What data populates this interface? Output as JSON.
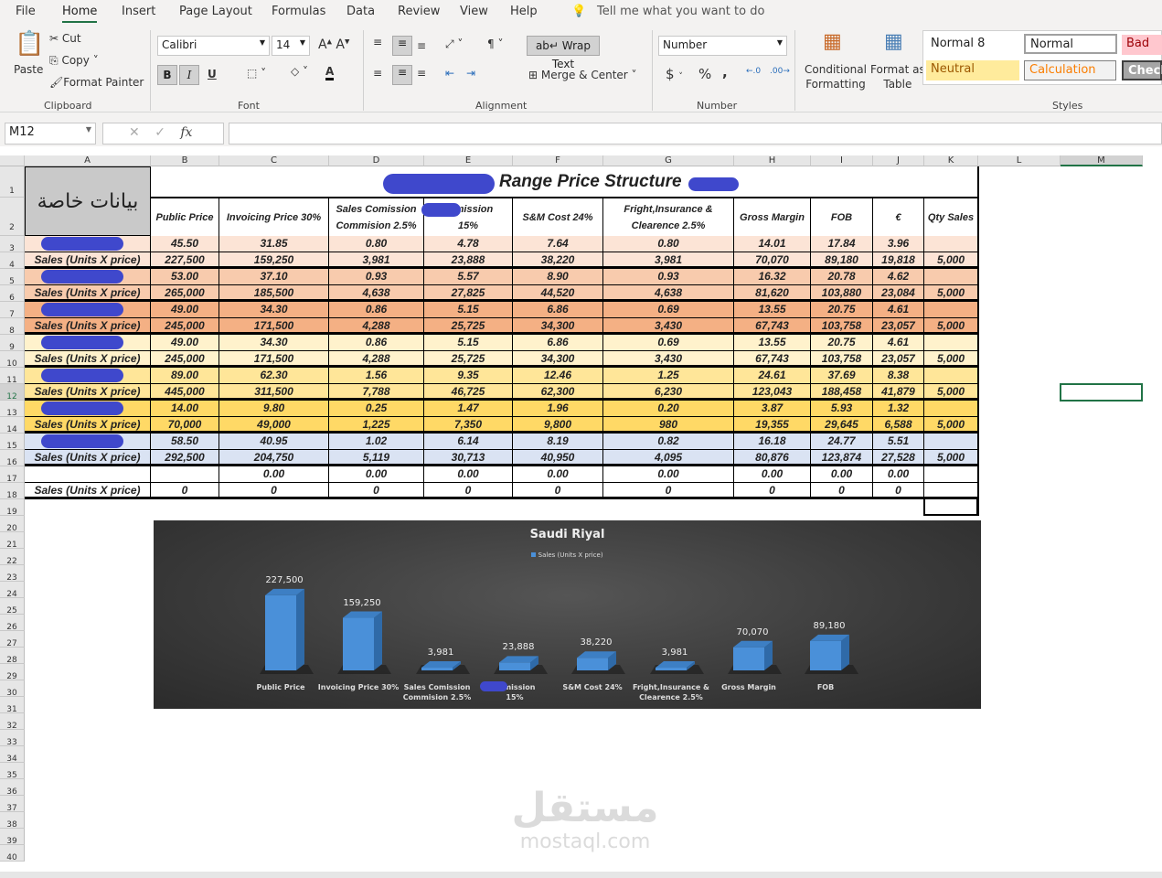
{
  "menu": {
    "tabs": [
      "File",
      "Home",
      "Insert",
      "Page Layout",
      "Formulas",
      "Data",
      "Review",
      "View",
      "Help"
    ],
    "active": "Home",
    "tell_me": "Tell me what you want to do"
  },
  "ribbon": {
    "clipboard": {
      "paste": "Paste",
      "cut": "Cut",
      "copy": "Copy",
      "format_painter": "Format Painter",
      "label": "Clipboard"
    },
    "font": {
      "name": "Calibri",
      "size": "14",
      "bold": "B",
      "italic": "I",
      "underline": "U",
      "label": "Font"
    },
    "alignment": {
      "wrap_text": "Wrap Text",
      "merge_center": "Merge & Center",
      "label": "Alignment"
    },
    "number": {
      "format": "Number",
      "currency": "$",
      "percent": "%",
      "comma": ",",
      "label": "Number"
    },
    "styles": {
      "conditional": "Conditional\nFormatting",
      "format_table": "Format as\nTable",
      "normal8": "Normal 8",
      "normal": "Normal",
      "bad": "Bad",
      "neutral": "Neutral",
      "calculation": "Calculation",
      "check": "Check",
      "label": "Styles"
    }
  },
  "formula_bar": {
    "name_box": "M12",
    "fx": "fx",
    "value": ""
  },
  "columns": [
    "A",
    "B",
    "C",
    "D",
    "E",
    "F",
    "G",
    "H",
    "I",
    "J",
    "K",
    "L",
    "M"
  ],
  "sheet": {
    "a1": "بيانات خاصة",
    "title": "Range Price Structure",
    "headers": [
      "Public Price",
      "Invoicing Price 30%",
      "Sales Comission\nCommision 2.5%",
      "comission\n15%",
      "S&M Cost 24%",
      "Fright,Insurance &\nClearence 2.5%",
      "Gross Margin",
      "FOB",
      "€",
      "Qty Sales"
    ],
    "band_colors": [
      "#fce4d6",
      "#f8cbad",
      "#f4b084",
      "#fff2cc",
      "#ffe699",
      "#ffd966",
      "#dae3f3",
      "#ffffff"
    ],
    "rows": [
      {
        "label": "",
        "values": [
          "45.50",
          "31.85",
          "0.80",
          "4.78",
          "7.64",
          "0.80",
          "14.01",
          "17.84",
          "3.96",
          ""
        ]
      },
      {
        "label": "Sales (Units X price)",
        "values": [
          "227,500",
          "159,250",
          "3,981",
          "23,888",
          "38,220",
          "3,981",
          "70,070",
          "89,180",
          "19,818",
          "5,000"
        ]
      },
      {
        "label": "",
        "values": [
          "53.00",
          "37.10",
          "0.93",
          "5.57",
          "8.90",
          "0.93",
          "16.32",
          "20.78",
          "4.62",
          ""
        ]
      },
      {
        "label": "Sales (Units X price)",
        "values": [
          "265,000",
          "185,500",
          "4,638",
          "27,825",
          "44,520",
          "4,638",
          "81,620",
          "103,880",
          "23,084",
          "5,000"
        ]
      },
      {
        "label": "",
        "values": [
          "49.00",
          "34.30",
          "0.86",
          "5.15",
          "6.86",
          "0.69",
          "13.55",
          "20.75",
          "4.61",
          ""
        ]
      },
      {
        "label": "Sales (Units X price)",
        "values": [
          "245,000",
          "171,500",
          "4,288",
          "25,725",
          "34,300",
          "3,430",
          "67,743",
          "103,758",
          "23,057",
          "5,000"
        ]
      },
      {
        "label": "",
        "values": [
          "49.00",
          "34.30",
          "0.86",
          "5.15",
          "6.86",
          "0.69",
          "13.55",
          "20.75",
          "4.61",
          ""
        ]
      },
      {
        "label": "Sales (Units X price)",
        "values": [
          "245,000",
          "171,500",
          "4,288",
          "25,725",
          "34,300",
          "3,430",
          "67,743",
          "103,758",
          "23,057",
          "5,000"
        ]
      },
      {
        "label": "",
        "values": [
          "89.00",
          "62.30",
          "1.56",
          "9.35",
          "12.46",
          "1.25",
          "24.61",
          "37.69",
          "8.38",
          ""
        ]
      },
      {
        "label": "Sales (Units X price)",
        "values": [
          "445,000",
          "311,500",
          "7,788",
          "46,725",
          "62,300",
          "6,230",
          "123,043",
          "188,458",
          "41,879",
          "5,000"
        ]
      },
      {
        "label": "",
        "values": [
          "14.00",
          "9.80",
          "0.25",
          "1.47",
          "1.96",
          "0.20",
          "3.87",
          "5.93",
          "1.32",
          ""
        ]
      },
      {
        "label": "Sales (Units X price)",
        "values": [
          "70,000",
          "49,000",
          "1,225",
          "7,350",
          "9,800",
          "980",
          "19,355",
          "29,645",
          "6,588",
          "5,000"
        ]
      },
      {
        "label": "",
        "values": [
          "58.50",
          "40.95",
          "1.02",
          "6.14",
          "8.19",
          "0.82",
          "16.18",
          "24.77",
          "5.51",
          ""
        ]
      },
      {
        "label": "Sales (Units X price)",
        "values": [
          "292,500",
          "204,750",
          "5,119",
          "30,713",
          "40,950",
          "4,095",
          "80,876",
          "123,874",
          "27,528",
          "5,000"
        ]
      },
      {
        "label": "",
        "values": [
          "",
          "0.00",
          "0.00",
          "0.00",
          "0.00",
          "0.00",
          "0.00",
          "0.00",
          "0.00",
          ""
        ]
      },
      {
        "label": "Sales (Units X price)",
        "values": [
          "0",
          "0",
          "0",
          "0",
          "0",
          "0",
          "0",
          "0",
          "0",
          ""
        ]
      }
    ]
  },
  "chart_data": {
    "type": "bar",
    "title": "Saudi Riyal",
    "legend": "top",
    "categories": [
      "Public Price",
      "Invoicing Price 30%",
      "Sales Comission\nCommision 2.5%",
      "comission\n15%",
      "S&M Cost 24%",
      "Fright,Insurance &\nClearence 2.5%",
      "Gross Margin",
      "FOB"
    ],
    "series": [
      {
        "name": "Sales (Units X price)",
        "values": [
          227500,
          159250,
          3981,
          23888,
          38220,
          3981,
          70070,
          89180
        ],
        "labels": [
          "227,500",
          "159,250",
          "3,981",
          "23,888",
          "38,220",
          "3,981",
          "70,070",
          "89,180"
        ],
        "color": "#4a90d9"
      }
    ],
    "ylim": [
      0,
      250000
    ],
    "grid": false
  },
  "watermark": {
    "arabic": "مستقل",
    "latin": "mostaql.com"
  }
}
